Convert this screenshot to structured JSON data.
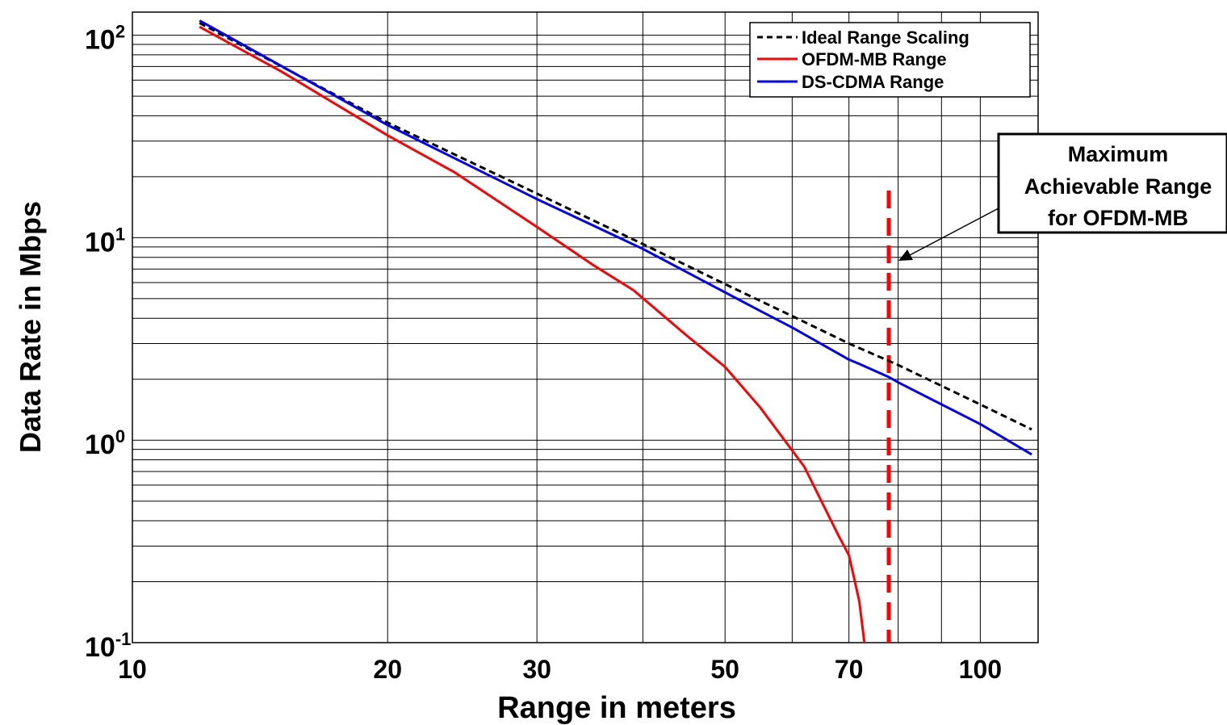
{
  "chart_data": {
    "type": "line",
    "xlabel": "Range in meters",
    "ylabel": "Data Rate in Mbps",
    "xscale": "log",
    "yscale": "log",
    "xlim": [
      10,
      117
    ],
    "ylim": [
      0.1,
      130
    ],
    "grid": true,
    "legend_position": "top-right",
    "x_ticks": [
      {
        "value": 10,
        "label": "10"
      },
      {
        "value": 20,
        "label": "20"
      },
      {
        "value": 30,
        "label": "30"
      },
      {
        "value": 50,
        "label": "50"
      },
      {
        "value": 70,
        "label": "70"
      },
      {
        "value": 100,
        "label": "100"
      }
    ],
    "y_ticks": [
      {
        "value": 0.1,
        "base": "10",
        "exp": "-1"
      },
      {
        "value": 1,
        "base": "10",
        "exp": "0"
      },
      {
        "value": 10,
        "base": "10",
        "exp": "1"
      },
      {
        "value": 100,
        "base": "10",
        "exp": "2"
      }
    ],
    "series": [
      {
        "name": "Ideal Range Scaling",
        "color": "#000000",
        "dash": "dashed",
        "x": [
          12,
          20,
          30,
          40,
          50,
          60,
          70,
          80,
          100,
          115
        ],
        "y": [
          115,
          37,
          16.5,
          9.3,
          5.9,
          4.1,
          3.0,
          2.35,
          1.5,
          1.13
        ]
      },
      {
        "name": "OFDM-MB Range",
        "color": "#ff0000",
        "dash": "solid",
        "x": [
          12,
          15,
          20,
          24,
          30,
          35,
          39,
          45,
          50,
          55,
          62,
          68,
          70,
          72,
          73
        ],
        "y": [
          110,
          66,
          32,
          21,
          11.3,
          7.3,
          5.5,
          3.3,
          2.3,
          1.45,
          0.74,
          0.34,
          0.27,
          0.16,
          0.1
        ]
      },
      {
        "name": "DS-CDMA Range",
        "color": "#0000ff",
        "dash": "solid",
        "x": [
          12,
          20,
          30,
          40,
          55,
          60,
          70,
          72,
          78,
          80,
          100,
          115
        ],
        "y": [
          118,
          36,
          15.5,
          8.8,
          4.35,
          3.6,
          2.5,
          2.38,
          2.05,
          1.93,
          1.2,
          0.85
        ]
      }
    ],
    "threshold_line": {
      "x": 78,
      "color": "#ff0000",
      "dash": "dashed"
    },
    "annotation": {
      "lines": [
        "Maximum",
        "Achievable Range",
        "for OFDM-MB"
      ],
      "target": {
        "x": 79,
        "y": 7
      }
    }
  }
}
